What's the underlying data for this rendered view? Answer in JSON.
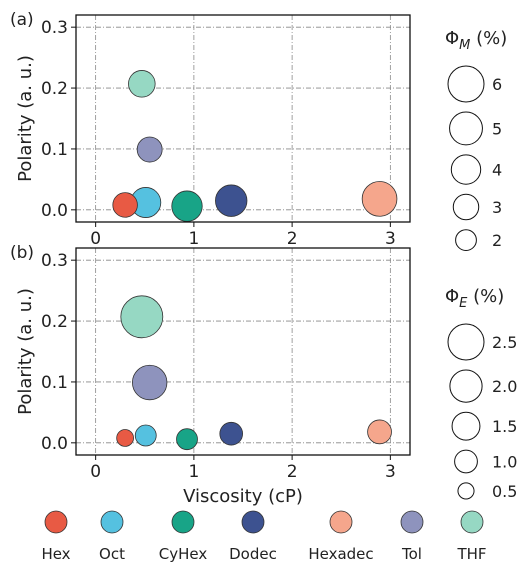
{
  "chart_data": [
    {
      "type": "scatter",
      "panel_label": "(a)",
      "title": "",
      "xlabel": "",
      "ylabel": "Polarity (a. u.)",
      "xlim": [
        -0.2,
        3.2
      ],
      "ylim": [
        -0.02,
        0.32
      ],
      "xticks": [
        "0",
        "1",
        "2",
        "3"
      ],
      "yticks": [
        "0.0",
        "0.1",
        "0.2",
        "0.3"
      ],
      "grid": true,
      "size_variable": "Φ_M (%)",
      "points": [
        {
          "solvent": "Hex",
          "x": 0.3,
          "y": 0.008,
          "value": 2.8
        },
        {
          "solvent": "Oct",
          "x": 0.51,
          "y": 0.012,
          "value": 4.2
        },
        {
          "solvent": "CyHex",
          "x": 0.93,
          "y": 0.006,
          "value": 4.3
        },
        {
          "solvent": "Dodec",
          "x": 1.38,
          "y": 0.015,
          "value": 4.6
        },
        {
          "solvent": "Hexadec",
          "x": 2.89,
          "y": 0.018,
          "value": 5.6
        },
        {
          "solvent": "Tol",
          "x": 0.55,
          "y": 0.099,
          "value": 2.9
        },
        {
          "solvent": "THF",
          "x": 0.47,
          "y": 0.207,
          "value": 3.3
        }
      ],
      "size_legend": {
        "title": "Φ_M (%)",
        "entries": [
          {
            "label": "6",
            "value": 6
          },
          {
            "label": "5",
            "value": 5
          },
          {
            "label": "4",
            "value": 4
          },
          {
            "label": "3",
            "value": 3
          },
          {
            "label": "2",
            "value": 2
          }
        ]
      }
    },
    {
      "type": "scatter",
      "panel_label": "(b)",
      "title": "",
      "xlabel": "Viscosity (cP)",
      "ylabel": "Polarity (a. u.)",
      "xlim": [
        -0.2,
        3.2
      ],
      "ylim": [
        -0.02,
        0.32
      ],
      "xticks": [
        "0",
        "1",
        "2",
        "3"
      ],
      "yticks": [
        "0.0",
        "0.1",
        "0.2",
        "0.3"
      ],
      "grid": true,
      "size_variable": "Φ_E (%)",
      "points": [
        {
          "solvent": "Hex",
          "x": 0.3,
          "y": 0.008,
          "value": 0.55
        },
        {
          "solvent": "Oct",
          "x": 0.51,
          "y": 0.012,
          "value": 0.85
        },
        {
          "solvent": "CyHex",
          "x": 0.93,
          "y": 0.006,
          "value": 0.85
        },
        {
          "solvent": "Dodec",
          "x": 1.38,
          "y": 0.015,
          "value": 1.0
        },
        {
          "solvent": "Hexadec",
          "x": 2.89,
          "y": 0.018,
          "value": 1.1
        },
        {
          "solvent": "Tol",
          "x": 0.55,
          "y": 0.099,
          "value": 2.3
        },
        {
          "solvent": "THF",
          "x": 0.47,
          "y": 0.207,
          "value": 3.4
        }
      ],
      "size_legend": {
        "title": "Φ_E (%)",
        "entries": [
          {
            "label": "2.5",
            "value": 2.5
          },
          {
            "label": "2.0",
            "value": 2.0
          },
          {
            "label": "1.5",
            "value": 1.5
          },
          {
            "label": "1.0",
            "value": 1.0
          },
          {
            "label": "0.5",
            "value": 0.5
          }
        ]
      }
    }
  ],
  "solvent_legend": [
    {
      "name": "Hex",
      "color": "#e85a44"
    },
    {
      "name": "Oct",
      "color": "#55c1e0"
    },
    {
      "name": "CyHex",
      "color": "#18a487"
    },
    {
      "name": "Dodec",
      "color": "#3d5290"
    },
    {
      "name": "Hexadec",
      "color": "#f5a68c"
    },
    {
      "name": "Tol",
      "color": "#8e93bd"
    },
    {
      "name": "THF",
      "color": "#96d8c3"
    }
  ]
}
